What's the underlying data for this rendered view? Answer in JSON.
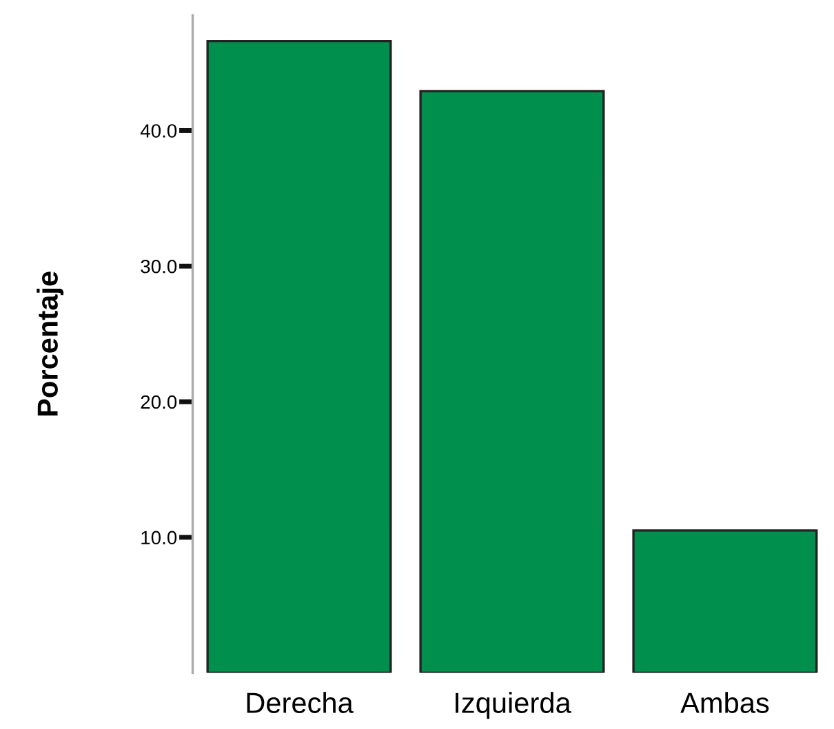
{
  "chart_data": {
    "type": "bar",
    "ylabel": "Porcentaje",
    "categories": [
      "Derecha",
      "Izquierda",
      "Ambas"
    ],
    "values": [
      46.6,
      42.9,
      10.5
    ],
    "color": "#008f4c",
    "ylim": [
      0,
      48.5
    ],
    "yticks": [
      {
        "value": 10,
        "label": "10.0"
      },
      {
        "value": 20,
        "label": "20.0"
      },
      {
        "value": 30,
        "label": "30.0"
      },
      {
        "value": 40,
        "label": "40.0"
      }
    ],
    "grid": false
  }
}
